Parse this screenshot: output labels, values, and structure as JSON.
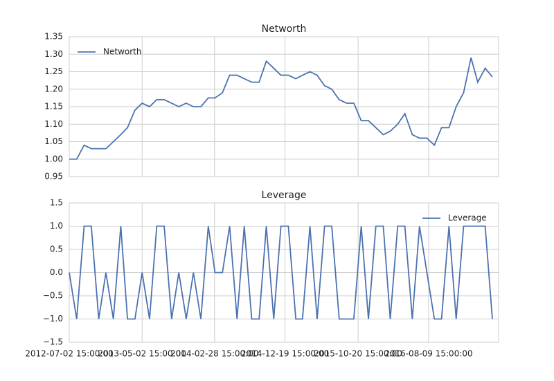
{
  "chart_data": [
    {
      "type": "line",
      "title": "Networth",
      "legend": "upper left",
      "grid": true,
      "x": [
        "2012-07-02 15:00:00",
        "2012-08-02 15:00:00",
        "2012-09-02 15:00:00",
        "2012-10-02 15:00:00",
        "2012-11-02 15:00:00",
        "2012-12-02 15:00:00",
        "2013-01-02 15:00:00",
        "2013-02-02 15:00:00",
        "2013-03-02 15:00:00",
        "2013-04-02 15:00:00",
        "2013-05-02 15:00:00",
        "2013-06-02 15:00:00",
        "2013-07-02 15:00:00",
        "2013-08-02 15:00:00",
        "2013-09-02 15:00:00",
        "2013-10-02 15:00:00",
        "2013-11-02 15:00:00",
        "2013-12-02 15:00:00",
        "2014-01-02 15:00:00",
        "2014-02-02 15:00:00",
        "2014-03-02 15:00:00",
        "2014-04-02 15:00:00",
        "2014-05-02 15:00:00",
        "2014-06-02 15:00:00",
        "2014-07-02 15:00:00",
        "2014-08-02 15:00:00",
        "2014-09-02 15:00:00",
        "2014-10-02 15:00:00",
        "2014-11-02 15:00:00",
        "2014-12-02 15:00:00",
        "2015-01-02 15:00:00",
        "2015-02-02 15:00:00",
        "2015-03-02 15:00:00",
        "2015-04-02 15:00:00",
        "2015-05-02 15:00:00",
        "2015-06-02 15:00:00",
        "2015-07-02 15:00:00",
        "2015-08-02 15:00:00",
        "2015-09-02 15:00:00",
        "2015-10-02 15:00:00",
        "2015-11-02 15:00:00",
        "2015-12-02 15:00:00",
        "2016-01-02 15:00:00",
        "2016-02-02 15:00:00",
        "2016-03-02 15:00:00",
        "2016-04-02 15:00:00",
        "2016-05-02 15:00:00",
        "2016-06-02 15:00:00",
        "2016-07-02 15:00:00",
        "2016-08-02 15:00:00",
        "2016-09-02 15:00:00",
        "2016-10-02 15:00:00",
        "2016-11-02 15:00:00",
        "2016-12-02 15:00:00",
        "2017-01-02 15:00:00",
        "2017-02-02 15:00:00",
        "2017-03-02 15:00:00",
        "2017-04-02 15:00:00",
        "2017-05-02 15:00:00"
      ],
      "series": [
        {
          "name": "Networth",
          "color": "#4c72b0",
          "values": [
            1.0,
            1.0,
            1.04,
            1.03,
            1.03,
            1.03,
            1.05,
            1.07,
            1.09,
            1.14,
            1.16,
            1.15,
            1.17,
            1.17,
            1.16,
            1.15,
            1.16,
            1.15,
            1.15,
            1.175,
            1.175,
            1.19,
            1.24,
            1.24,
            1.23,
            1.22,
            1.22,
            1.28,
            1.26,
            1.24,
            1.24,
            1.23,
            1.24,
            1.25,
            1.24,
            1.21,
            1.2,
            1.17,
            1.16,
            1.16,
            1.11,
            1.11,
            1.09,
            1.07,
            1.08,
            1.1,
            1.13,
            1.07,
            1.06,
            1.06,
            1.04,
            1.09,
            1.09,
            1.15,
            1.19,
            1.29,
            1.22,
            1.26,
            1.235
          ]
        }
      ],
      "xlim": [
        "2012-07-02 15:00:00",
        "2017-05-28 15:00:00"
      ],
      "xticks": [
        "2012-07-02 15:00:00",
        "2013-05-02 15:00:00",
        "2014-02-28 15:00:00",
        "2014-12-19 15:00:00",
        "2015-10-20 15:00:00",
        "2016-08-09 15:00:00"
      ],
      "ylim": [
        0.95,
        1.35
      ],
      "yticks": [
        0.95,
        {
          "value": 1.0,
          "label": "1.00"
        },
        1.05,
        {
          "value": 1.1,
          "label": "1.10"
        },
        1.15,
        {
          "value": 1.2,
          "label": "1.20"
        },
        1.25,
        {
          "value": 1.3,
          "label": "1.30"
        },
        1.35
      ]
    },
    {
      "type": "line",
      "title": "Leverage",
      "legend": "upper right",
      "grid": true,
      "x": [
        "2012-07-02 15:00:00",
        "2012-08-02 15:00:00",
        "2012-09-02 15:00:00",
        "2012-10-02 15:00:00",
        "2012-11-02 15:00:00",
        "2012-12-02 15:00:00",
        "2013-01-02 15:00:00",
        "2013-02-02 15:00:00",
        "2013-03-02 15:00:00",
        "2013-04-02 15:00:00",
        "2013-05-02 15:00:00",
        "2013-06-02 15:00:00",
        "2013-07-02 15:00:00",
        "2013-08-02 15:00:00",
        "2013-09-02 15:00:00",
        "2013-10-02 15:00:00",
        "2013-11-02 15:00:00",
        "2013-12-02 15:00:00",
        "2014-01-02 15:00:00",
        "2014-02-02 15:00:00",
        "2014-03-02 15:00:00",
        "2014-04-02 15:00:00",
        "2014-05-02 15:00:00",
        "2014-06-02 15:00:00",
        "2014-07-02 15:00:00",
        "2014-08-02 15:00:00",
        "2014-09-02 15:00:00",
        "2014-10-02 15:00:00",
        "2014-11-02 15:00:00",
        "2014-12-02 15:00:00",
        "2015-01-02 15:00:00",
        "2015-02-02 15:00:00",
        "2015-03-02 15:00:00",
        "2015-04-02 15:00:00",
        "2015-05-02 15:00:00",
        "2015-06-02 15:00:00",
        "2015-07-02 15:00:00",
        "2015-08-02 15:00:00",
        "2015-09-02 15:00:00",
        "2015-10-02 15:00:00",
        "2015-11-02 15:00:00",
        "2015-12-02 15:00:00",
        "2016-01-02 15:00:00",
        "2016-02-02 15:00:00",
        "2016-03-02 15:00:00",
        "2016-04-02 15:00:00",
        "2016-05-02 15:00:00",
        "2016-06-02 15:00:00",
        "2016-07-02 15:00:00",
        "2016-08-02 15:00:00",
        "2016-09-02 15:00:00",
        "2016-10-02 15:00:00",
        "2016-11-02 15:00:00",
        "2016-12-02 15:00:00",
        "2017-01-02 15:00:00",
        "2017-02-02 15:00:00",
        "2017-03-02 15:00:00",
        "2017-04-02 15:00:00",
        "2017-05-02 15:00:00"
      ],
      "series": [
        {
          "name": "Leverage",
          "color": "#4c72b0",
          "values": [
            0,
            -1,
            1,
            1,
            -1,
            0,
            -1,
            1,
            -1,
            -1,
            0,
            -1,
            1,
            1,
            -1,
            0,
            -1,
            0,
            -1,
            1,
            0,
            0,
            1,
            -1,
            1,
            -1,
            -1,
            1,
            -1,
            1,
            1,
            -1,
            -1,
            1,
            -1,
            1,
            1,
            -1,
            -1,
            -1,
            1,
            -1,
            1,
            1,
            -1,
            1,
            1,
            -1,
            1,
            0,
            -1,
            -1,
            1,
            -1,
            1,
            1,
            1,
            1,
            -1
          ]
        }
      ],
      "xlim": [
        "2012-07-02 15:00:00",
        "2017-05-28 15:00:00"
      ],
      "xticks": [
        "2012-07-02 15:00:00",
        "2013-05-02 15:00:00",
        "2014-02-28 15:00:00",
        "2014-12-19 15:00:00",
        "2015-10-20 15:00:00",
        "2016-08-09 15:00:00"
      ],
      "ylim": [
        -1.5,
        1.5
      ],
      "yticks": [
        {
          "value": -1.5,
          "label": "−1.5"
        },
        {
          "value": -1.0,
          "label": "−1.0"
        },
        {
          "value": -0.5,
          "label": "−0.5"
        },
        {
          "value": 0.0,
          "label": "0.0"
        },
        0.5,
        {
          "value": 1.0,
          "label": "1.0"
        },
        1.5
      ]
    }
  ]
}
